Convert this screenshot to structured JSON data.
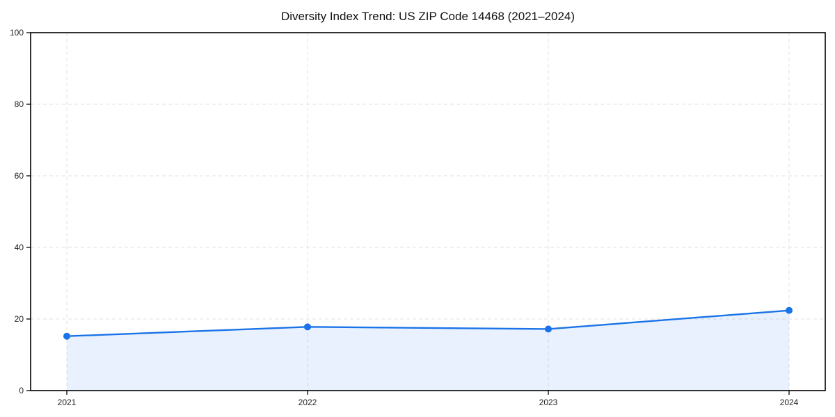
{
  "page": {
    "background": "#ffffff"
  },
  "chart_data": {
    "type": "area",
    "title": "Diversity Index Trend: US ZIP Code 14468 (2021–2024)",
    "x": [
      "2021",
      "2022",
      "2023",
      "2024"
    ],
    "series": [
      {
        "name": "Diversity Index",
        "values": [
          15.2,
          17.8,
          17.2,
          22.4
        ]
      }
    ],
    "xlabel": "",
    "ylabel": "",
    "ylim": [
      0,
      100
    ],
    "yticks": [
      0,
      20,
      40,
      60,
      80,
      100
    ],
    "grid": true,
    "grid_line_style": "dashed",
    "legend_position": "none",
    "marker": "circle",
    "fill_opacity": 0.1,
    "colors": {
      "line": "#1a73e8",
      "marker": "#1a73e8",
      "fill": "#1a73e8",
      "grid": "#e0e0e0",
      "spine": "#000000",
      "text": "#222222"
    }
  }
}
